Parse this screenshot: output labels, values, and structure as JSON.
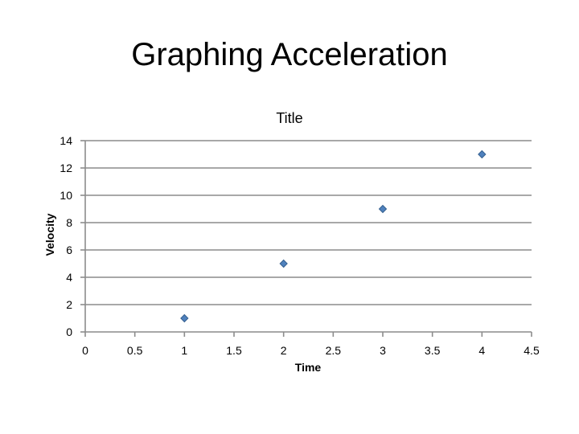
{
  "slide": {
    "title": "Graphing Acceleration"
  },
  "chart_data": {
    "type": "scatter",
    "title": "Title",
    "xlabel": "Time",
    "ylabel": "Velocity",
    "xlim": [
      0,
      4.5
    ],
    "ylim": [
      0,
      14
    ],
    "x_ticks": [
      0,
      0.5,
      1,
      1.5,
      2,
      2.5,
      3,
      3.5,
      4,
      4.5
    ],
    "y_ticks": [
      0,
      2,
      4,
      6,
      8,
      10,
      12,
      14
    ],
    "grid": "horizontal",
    "legend": "none",
    "marker": "diamond",
    "marker_color": "#4F81BD",
    "series": [
      {
        "x": [
          1,
          2,
          3,
          4
        ],
        "y": [
          1,
          5,
          9,
          13
        ]
      }
    ]
  }
}
